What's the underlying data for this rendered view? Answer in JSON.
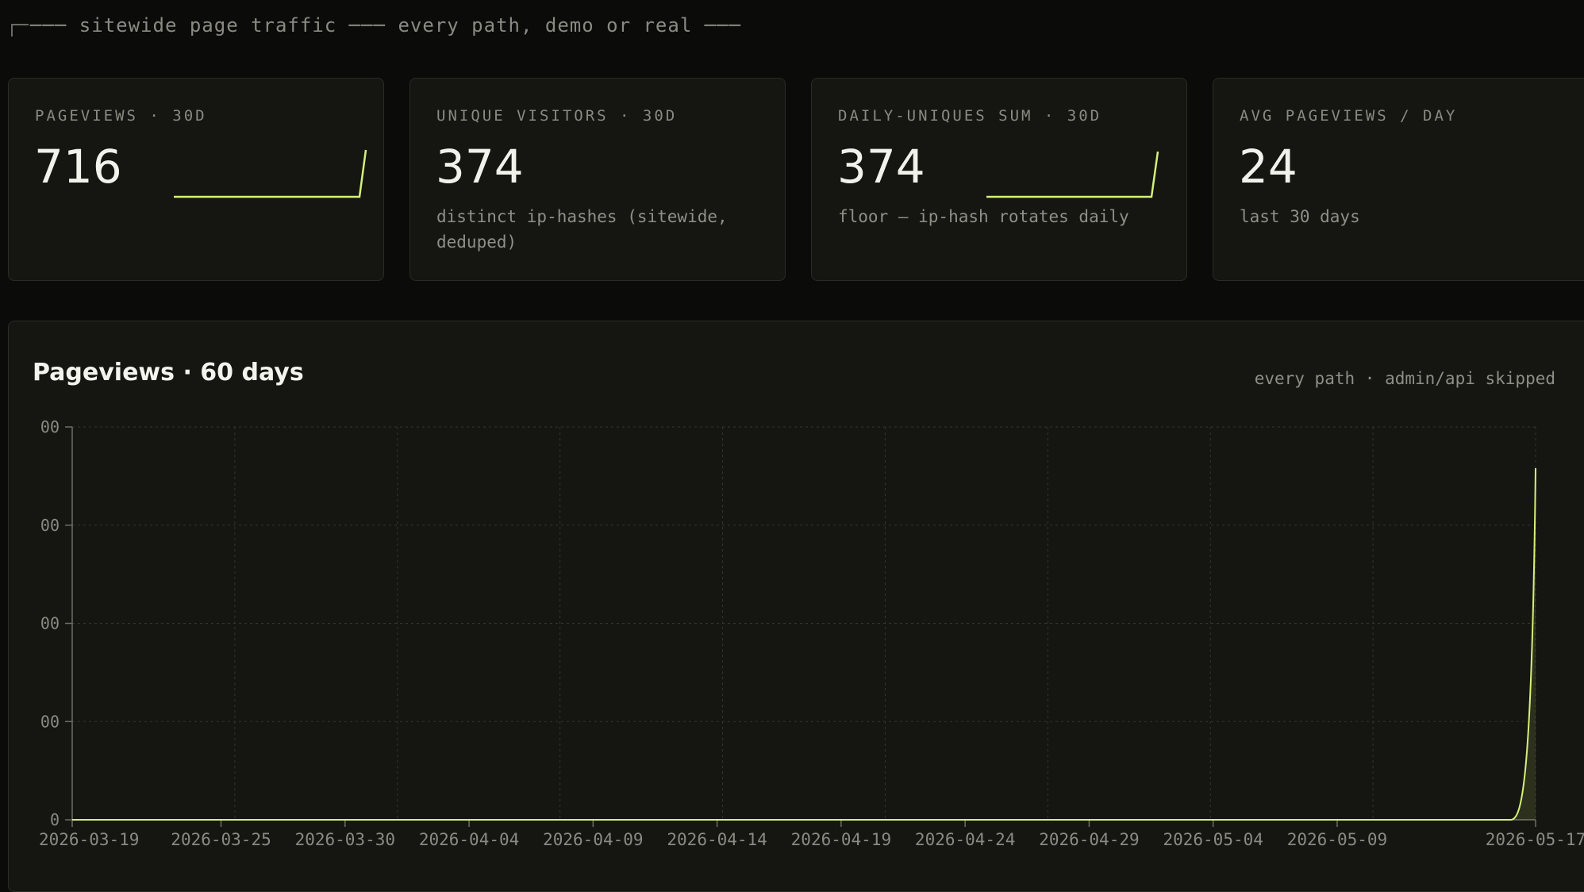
{
  "header": {
    "prefix": "─── sitewide page traffic ───",
    "suffix": " every path, demo or real ───"
  },
  "cards": [
    {
      "label": "PAGEVIEWS · 30D",
      "value": "716",
      "sub": "",
      "sparkline": true
    },
    {
      "label": "UNIQUE VISITORS · 30D",
      "value": "374",
      "sub": "distinct ip-hashes (sitewide, deduped)",
      "sparkline": false
    },
    {
      "label": "DAILY-UNIQUES SUM · 30D",
      "value": "374",
      "sub": "floor — ip-hash rotates daily",
      "sparkline": true
    },
    {
      "label": "AVG PAGEVIEWS / DAY",
      "value": "24",
      "sub": "last 30 days",
      "sparkline": false
    }
  ],
  "chart_panel": {
    "title": "Pageviews · 60 days",
    "note": "every path · admin/api skipped"
  },
  "colors": {
    "accent": "#d4f07a",
    "background": "#0b0b0a",
    "card": "#151611",
    "grid": "#34352e",
    "muted_text": "#8a8a83"
  },
  "chart_data": {
    "type": "area",
    "title": "Pageviews · 60 days",
    "xlabel": "",
    "ylabel": "",
    "y_tick_labels": [
      "0",
      "00",
      "00",
      "00",
      "00"
    ],
    "x_tick_labels": [
      "2026-03-19",
      "2026-03-25",
      "2026-03-30",
      "2026-04-04",
      "2026-04-09",
      "2026-04-14",
      "2026-04-19",
      "2026-04-24",
      "2026-04-29",
      "2026-05-04",
      "2026-05-09",
      "2026-05-17"
    ],
    "x_tick_dates": [
      "2026-03-19",
      "2026-03-25",
      "2026-03-30",
      "2026-04-04",
      "2026-04-09",
      "2026-04-14",
      "2026-04-19",
      "2026-04-24",
      "2026-04-29",
      "2026-05-04",
      "2026-05-09",
      "2026-05-17"
    ],
    "x_range": [
      "2026-03-19",
      "2026-05-17"
    ],
    "ylim": [
      0,
      800
    ],
    "grid": true,
    "series": [
      {
        "x": [
          "2026-03-19",
          "2026-05-15",
          "2026-05-16",
          "2026-05-17"
        ],
        "values": [
          0,
          0,
          0,
          716
        ]
      }
    ]
  }
}
